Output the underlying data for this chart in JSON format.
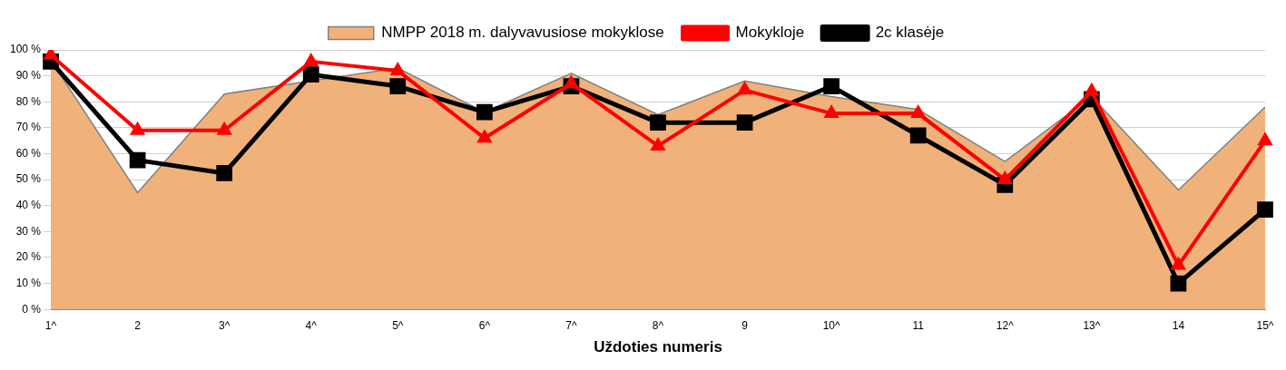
{
  "chart_data": {
    "type": "line",
    "xlabel": "Uždoties numeris",
    "categories": [
      "1^",
      "2",
      "3^",
      "4^",
      "5^",
      "6^",
      "7^",
      "8^",
      "9",
      "10^",
      "11",
      "12^",
      "13^",
      "14",
      "15^"
    ],
    "series": [
      {
        "name": "NMPP 2018 m. dalyvavusiose mokyklose",
        "type": "area",
        "color": "#f0b27a",
        "values": [
          96,
          45,
          83,
          88,
          93,
          76,
          91,
          75,
          88,
          82,
          77,
          57,
          82,
          46,
          78
        ]
      },
      {
        "name": "Mokykloje",
        "color": "#ff0000",
        "marker": "triangle",
        "values": [
          98,
          69,
          69,
          95.5,
          92,
          66,
          87,
          63,
          84.5,
          75.5,
          75.5,
          50,
          84,
          17,
          65
        ]
      },
      {
        "name": "2c klasėje",
        "color": "#000000",
        "marker": "square",
        "values": [
          95.5,
          57.5,
          52.5,
          90.5,
          86,
          76,
          86,
          72,
          72,
          86,
          67,
          48,
          81,
          10,
          38.5
        ]
      }
    ],
    "ylim": [
      0,
      100
    ],
    "yticks": [
      {
        "value": 0,
        "label": "0 %"
      },
      {
        "value": 10,
        "label": "10 %"
      },
      {
        "value": 20,
        "label": "20 %"
      },
      {
        "value": 30,
        "label": "30 %"
      },
      {
        "value": 40,
        "label": "40 %"
      },
      {
        "value": 50,
        "label": "50 %"
      },
      {
        "value": 60,
        "label": "60 %"
      },
      {
        "value": 70,
        "label": "70 %"
      },
      {
        "value": 80,
        "label": "80 %"
      },
      {
        "value": 90,
        "label": "90 %"
      },
      {
        "value": 100,
        "label": "100 %"
      }
    ],
    "grid": "y",
    "legend": "top"
  }
}
